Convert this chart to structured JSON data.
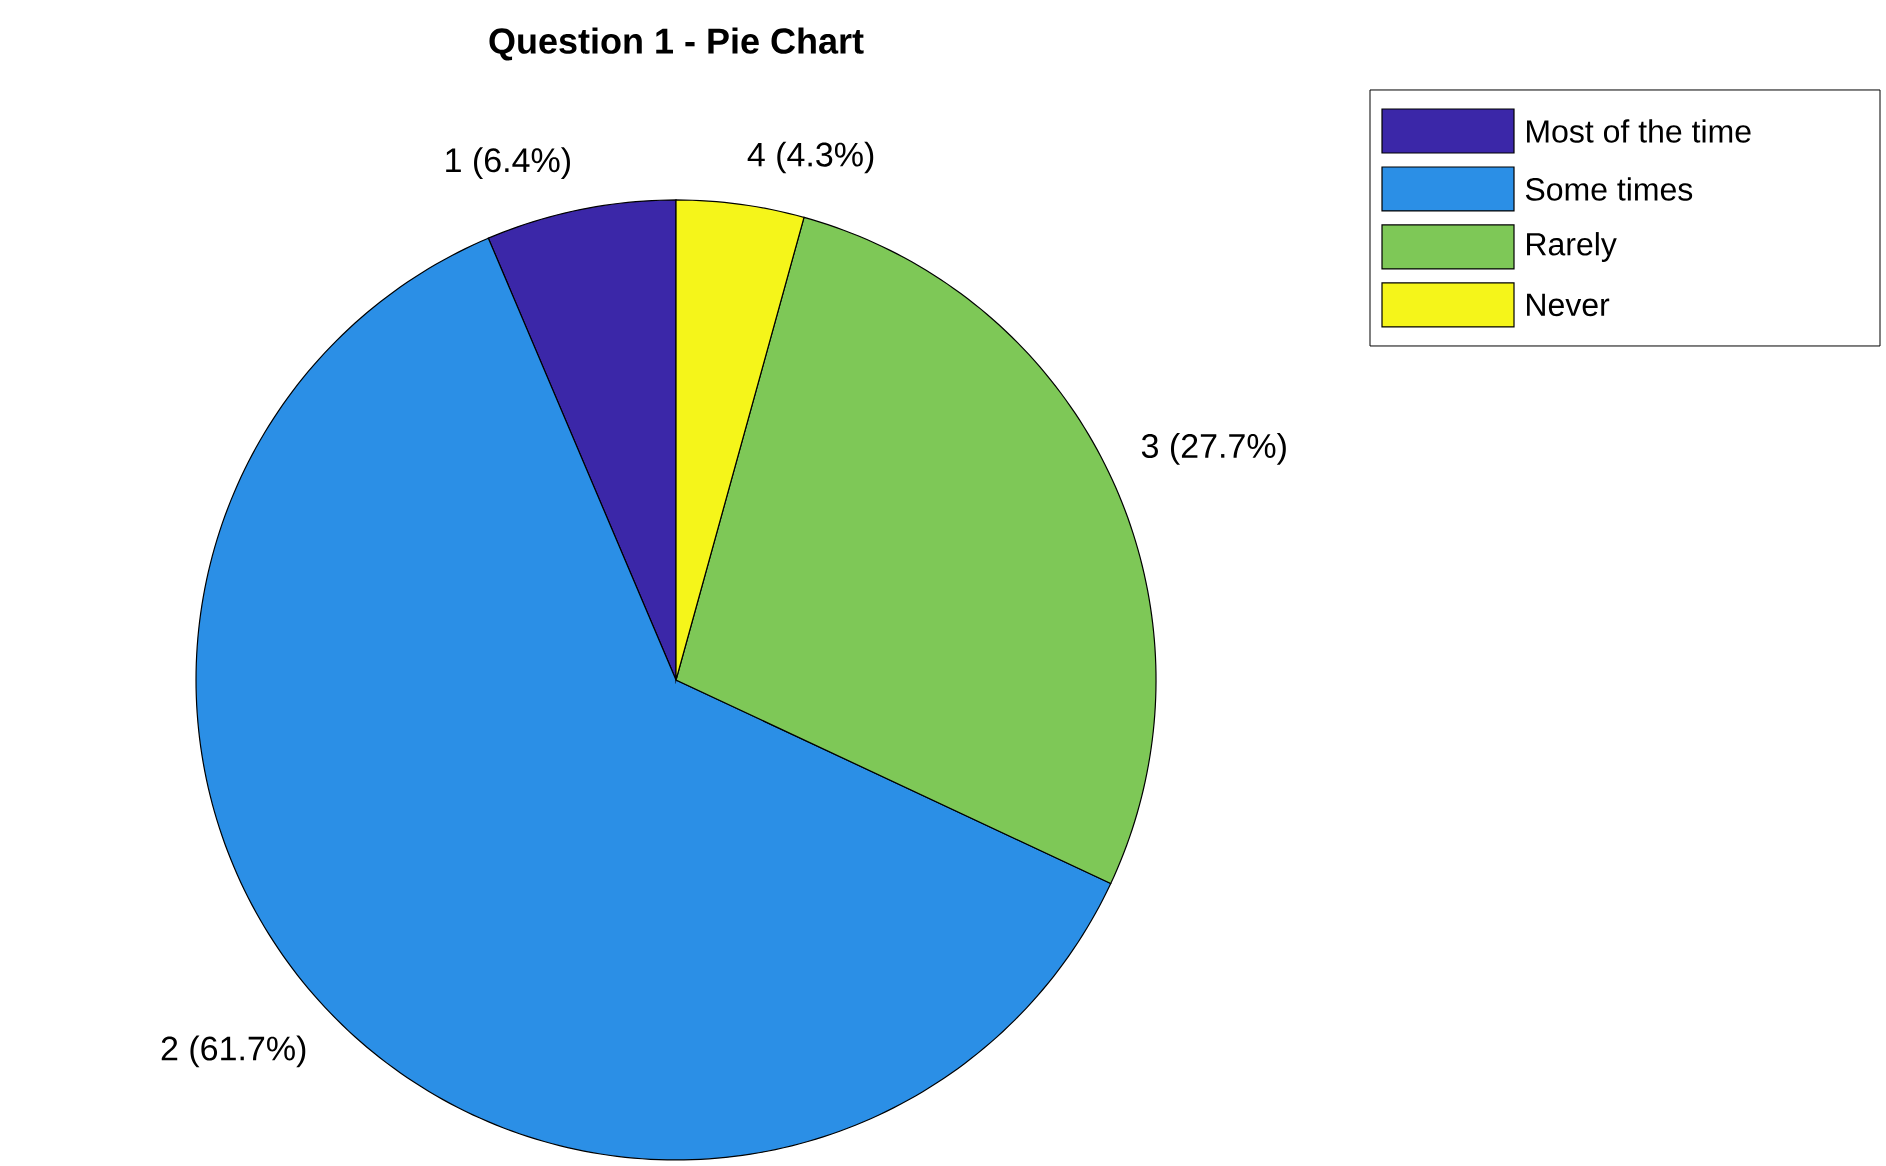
{
  "chart_data": {
    "type": "pie",
    "title": "Question 1 - Pie Chart",
    "categories": [
      "Most of the time",
      "Some times",
      "Rarely",
      "Never"
    ],
    "values": [
      6.4,
      61.7,
      27.7,
      4.3
    ],
    "colors": [
      "#3b27a8",
      "#2b8fe6",
      "#7ec857",
      "#f5f51a"
    ],
    "value_labels": [
      "1 (6.4%)",
      "2 (61.7%)",
      "3 (27.7%)",
      "4 (4.3%)"
    ],
    "legend": "top right"
  }
}
